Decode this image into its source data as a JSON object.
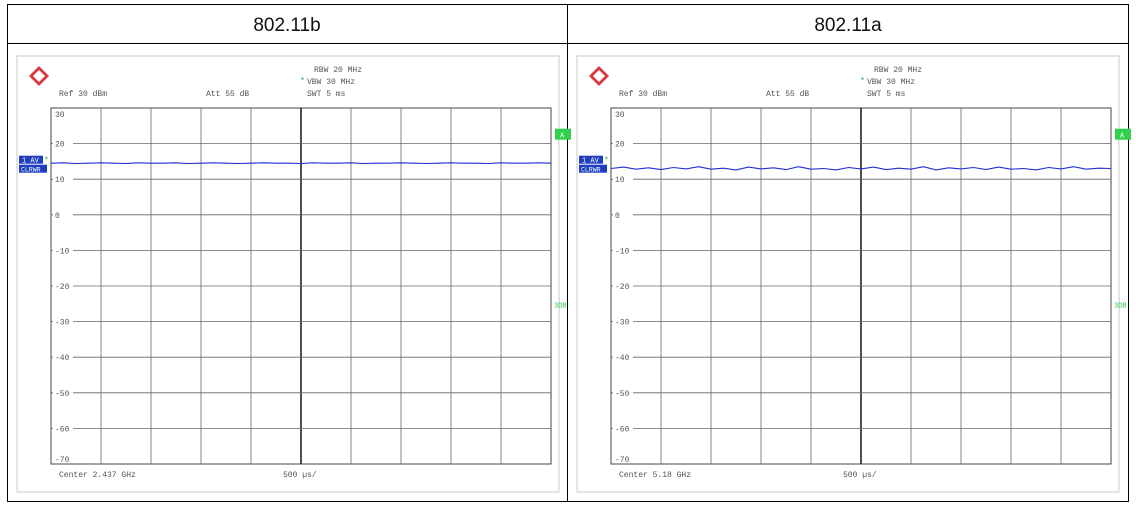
{
  "table": {
    "headers": [
      "802.11b",
      "802.11a"
    ]
  },
  "chart_data": [
    {
      "type": "line",
      "title": "",
      "xlabel": "",
      "ylabel": "",
      "ref_level": "Ref  30 dBm",
      "attenuation": "Att  55 dB",
      "rbw": "RBW 20 MHz",
      "vbw": "VBW 30 MHz",
      "sweep_time": "SWT 5 ms",
      "center": "Center 2.437 GHz",
      "span_per_div": "500 µs/",
      "trace_label_1": "1 AV",
      "trace_label_2": "CLRWR",
      "marker_a": "A",
      "marker_3db": "3DB",
      "ylim": [
        -70,
        30
      ],
      "y_ticks": [
        "30",
        "20",
        "10",
        "0",
        "-10",
        "-20",
        "-30",
        "-40",
        "-50",
        "-60",
        "-70"
      ],
      "x_divisions": 10,
      "trace_color": "#1f2fcf",
      "series": [
        {
          "values": [
            14.5,
            14.6,
            14.4,
            14.5,
            14.6,
            14.5,
            14.4,
            14.6,
            14.5,
            14.5,
            14.6,
            14.4,
            14.5,
            14.6,
            14.5,
            14.4,
            14.5,
            14.6,
            14.5,
            14.5,
            14.4,
            14.6,
            14.5,
            14.5,
            14.6,
            14.4,
            14.5,
            14.5,
            14.6,
            14.5,
            14.4,
            14.5,
            14.6,
            14.5,
            14.5,
            14.4,
            14.6,
            14.5,
            14.5,
            14.6,
            14.5
          ]
        }
      ]
    },
    {
      "type": "line",
      "title": "",
      "xlabel": "",
      "ylabel": "",
      "ref_level": "Ref  30 dBm",
      "attenuation": "Att  55 dB",
      "rbw": "RBW 20 MHz",
      "vbw": "VBW 30 MHz",
      "sweep_time": "SWT 5 ms",
      "center": "Center 5.18 GHz",
      "span_per_div": "500 µs/",
      "trace_label_1": "1 AV",
      "trace_label_2": "CLRWR",
      "marker_a": "A",
      "marker_3db": "3DB",
      "ylim": [
        -70,
        30
      ],
      "y_ticks": [
        "30",
        "20",
        "10",
        "0",
        "-10",
        "-20",
        "-30",
        "-40",
        "-50",
        "-60",
        "-70"
      ],
      "x_divisions": 10,
      "trace_color": "#1f2fcf",
      "series": [
        {
          "values": [
            13.0,
            13.4,
            12.8,
            13.2,
            12.7,
            13.3,
            12.9,
            13.5,
            12.8,
            13.1,
            12.6,
            13.4,
            12.9,
            13.2,
            12.7,
            13.5,
            12.8,
            13.0,
            12.6,
            13.3,
            12.9,
            13.4,
            12.7,
            13.1,
            12.8,
            13.5,
            12.6,
            13.2,
            12.9,
            13.3,
            12.7,
            13.4,
            12.8,
            13.0,
            12.6,
            13.3,
            12.9,
            13.5,
            12.8,
            13.1,
            13.0
          ]
        }
      ]
    }
  ]
}
